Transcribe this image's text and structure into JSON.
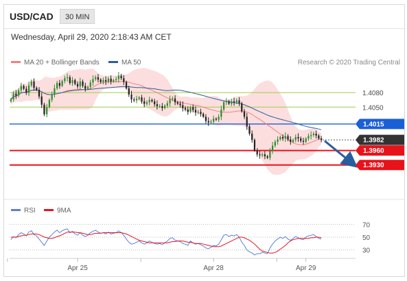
{
  "header": {
    "symbol": "USD/CAD",
    "timeframe": "30 MIN",
    "datetime": "Wednesday, April 29, 2020 2:18:43 AM CET"
  },
  "legend": {
    "ma20_label": "MA 20 + Bollinger Bands",
    "ma50_label": "MA 50",
    "credit": "Research © 2020 Trading Central",
    "rsi_label": "RSI",
    "rsi_ma_label": "9MA"
  },
  "colors": {
    "ma20": "#f08080",
    "ma50": "#2a5d9f",
    "band": "#fbd3d3",
    "candle_up": "#2e8b2e",
    "candle_down": "#222222",
    "green_level": "#9dcc4a",
    "blue_level": "#1a5fd6",
    "red_level": "#e8121b",
    "current_tag": "#333333",
    "arrow": "#2a5d9f",
    "rsi": "#5b7fdb",
    "rsi_ma": "#e8121b"
  },
  "chart_data": [
    {
      "type": "candlestick",
      "price_range": [
        1.386,
        1.413
      ],
      "levels": [
        {
          "value": 1.408,
          "label": "1.4080",
          "kind": "resistance",
          "style": "green-text"
        },
        {
          "value": 1.405,
          "label": "1.4050",
          "kind": "resistance",
          "style": "green-text"
        },
        {
          "value": 1.4015,
          "label": "1.4015",
          "kind": "pivot",
          "style": "blue-tag"
        },
        {
          "value": 1.3982,
          "label": "1.3982",
          "kind": "current",
          "style": "dark-tag"
        },
        {
          "value": 1.396,
          "label": "1.3960",
          "kind": "support",
          "style": "red-tag"
        },
        {
          "value": 1.393,
          "label": "1.3930",
          "kind": "support",
          "style": "red-tag"
        }
      ],
      "x_labels": [
        "Apr 25",
        "Apr 28",
        "Apr 29"
      ],
      "forecast": {
        "from": 1.398,
        "to": 1.3935,
        "direction": "down"
      },
      "close_series": [
        1.4066,
        1.4078,
        1.4074,
        1.4085,
        1.4094,
        1.4088,
        1.408,
        1.4095,
        1.4103,
        1.409,
        1.4086,
        1.4072,
        1.4055,
        1.4035,
        1.405,
        1.4065,
        1.4077,
        1.4089,
        1.41,
        1.4094,
        1.4104,
        1.411,
        1.4112,
        1.41,
        1.4106,
        1.4098,
        1.4093,
        1.4103,
        1.4094,
        1.4088,
        1.4092,
        1.4101,
        1.4108,
        1.4112,
        1.4107,
        1.4102,
        1.4106,
        1.4103,
        1.4109,
        1.4103,
        1.4106,
        1.4108,
        1.4115,
        1.411,
        1.4102,
        1.4089,
        1.4076,
        1.4066,
        1.4064,
        1.4067,
        1.407,
        1.4062,
        1.4057,
        1.406,
        1.4065,
        1.4062,
        1.4056,
        1.4052,
        1.4052,
        1.4048,
        1.4053,
        1.4058,
        1.4066,
        1.4068,
        1.406,
        1.4057,
        1.4054,
        1.4048,
        1.4045,
        1.404,
        1.405,
        1.4044,
        1.4039,
        1.404,
        1.4036,
        1.403,
        1.4021,
        1.4018,
        1.402,
        1.4026,
        1.4024,
        1.403,
        1.4045,
        1.406,
        1.4062,
        1.4057,
        1.4062,
        1.406,
        1.4064,
        1.4058,
        1.4041,
        1.403,
        1.401,
        1.3995,
        1.3982,
        1.396,
        1.3952,
        1.395,
        1.3952,
        1.3948,
        1.3945,
        1.396,
        1.397,
        1.3978,
        1.3983,
        1.3988,
        1.3985,
        1.399,
        1.3983,
        1.3978,
        1.3982,
        1.3988,
        1.3985,
        1.398,
        1.3978,
        1.3985,
        1.399,
        1.3992,
        1.3995,
        1.3991,
        1.3985,
        1.3982
      ]
    },
    {
      "type": "line",
      "name": "RSI",
      "y_ticks": [
        70,
        50,
        30
      ],
      "ylim": [
        22,
        78
      ],
      "rsi_series": [
        46,
        51,
        49,
        54,
        57,
        55,
        52,
        58,
        60,
        54,
        52,
        47,
        42,
        37,
        44,
        50,
        54,
        58,
        61,
        57,
        60,
        62,
        63,
        57,
        59,
        55,
        53,
        57,
        53,
        51,
        53,
        57,
        59,
        61,
        58,
        56,
        57,
        55,
        58,
        55,
        56,
        57,
        60,
        57,
        53,
        47,
        42,
        39,
        40,
        42,
        44,
        41,
        39,
        41,
        44,
        42,
        40,
        39,
        40,
        38,
        41,
        44,
        48,
        49,
        45,
        44,
        43,
        40,
        39,
        37,
        44,
        41,
        39,
        40,
        38,
        36,
        33,
        32,
        34,
        37,
        36,
        39,
        46,
        53,
        54,
        51,
        53,
        52,
        54,
        50,
        42,
        37,
        30,
        27,
        25,
        22,
        24,
        24,
        26,
        25,
        24,
        33,
        39,
        44,
        47,
        50,
        48,
        51,
        47,
        45,
        48,
        51,
        49,
        47,
        46,
        50,
        52,
        53,
        54,
        51,
        48,
        47
      ],
      "rsi_ma_series": [
        50,
        50,
        50,
        51,
        52,
        53,
        53,
        54,
        55,
        55,
        55,
        54,
        52,
        50,
        49,
        48,
        48,
        49,
        51,
        52,
        54,
        56,
        58,
        58,
        58,
        58,
        57,
        57,
        56,
        55,
        54,
        54,
        55,
        56,
        56,
        56,
        57,
        57,
        57,
        57,
        57,
        57,
        57,
        57,
        56,
        55,
        53,
        51,
        49,
        47,
        45,
        44,
        43,
        42,
        41,
        41,
        41,
        41,
        41,
        41,
        41,
        41,
        42,
        43,
        43,
        44,
        44,
        44,
        43,
        42,
        42,
        41,
        40,
        40,
        40,
        39,
        38,
        37,
        36,
        35,
        35,
        35,
        36,
        38,
        40,
        42,
        44,
        46,
        48,
        50,
        50,
        49,
        47,
        45,
        42,
        39,
        35,
        31,
        28,
        27,
        26,
        25,
        25,
        26,
        28,
        31,
        34,
        37,
        41,
        44,
        46,
        47,
        48,
        48,
        48,
        48,
        48,
        49,
        49,
        50,
        50,
        49
      ]
    }
  ]
}
